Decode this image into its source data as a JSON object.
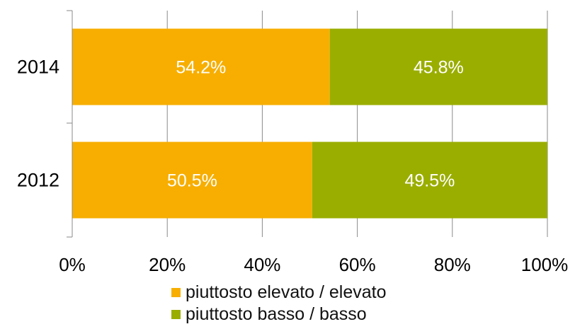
{
  "chart_data": {
    "type": "bar",
    "orientation": "horizontal",
    "stacked": "percent",
    "categories": [
      "2014",
      "2012"
    ],
    "series": [
      {
        "name": "piuttosto elevato / elevato",
        "values": [
          54.2,
          50.5
        ],
        "labels": [
          "54.2%",
          "50.5%"
        ],
        "color": "#F7AE00"
      },
      {
        "name": "piuttosto basso / basso",
        "values": [
          45.8,
          49.5
        ],
        "labels": [
          "45.8%",
          "49.5%"
        ],
        "color": "#9AAE00"
      }
    ],
    "x_ticks": [
      "0%",
      "20%",
      "40%",
      "60%",
      "80%",
      "100%"
    ],
    "xlim": [
      0,
      100
    ],
    "grid": true,
    "legend_position": "bottom"
  }
}
